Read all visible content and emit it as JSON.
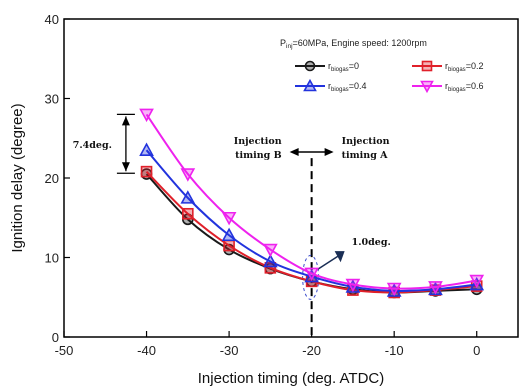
{
  "chart_data": {
    "type": "line",
    "xlabel": "Injection timing (deg. ATDC)",
    "ylabel": "Ignition delay (degree)",
    "xlim": [
      -50,
      5
    ],
    "ylim": [
      0,
      40
    ],
    "xticks": [
      -50,
      -40,
      -30,
      -20,
      -10,
      0
    ],
    "yticks": [
      0,
      10,
      20,
      30,
      40
    ],
    "x": [
      -40,
      -35,
      -30,
      -25,
      -20,
      -15,
      -10,
      -5,
      0
    ],
    "legend_title": "P_inj=60MPa, Engine speed: 1200rpm",
    "series": [
      {
        "name": "r_biogas=0",
        "color": "#1a1a1a",
        "marker": "circle",
        "values": [
          20.5,
          14.8,
          11.0,
          8.6,
          7.0,
          6.0,
          5.6,
          5.8,
          6.0
        ]
      },
      {
        "name": "r_biogas=0.2",
        "color": "#e0202a",
        "marker": "square",
        "values": [
          20.8,
          15.5,
          11.5,
          8.7,
          7.0,
          5.9,
          5.6,
          5.9,
          6.4
        ]
      },
      {
        "name": "r_biogas=0.4",
        "color": "#2233dd",
        "marker": "triangle-up",
        "values": [
          23.5,
          17.5,
          12.8,
          9.5,
          7.6,
          6.3,
          5.8,
          6.0,
          6.6
        ]
      },
      {
        "name": "r_biogas=0.6",
        "color": "#ee22ee",
        "marker": "triangle-down",
        "values": [
          28.0,
          20.5,
          15.0,
          11.0,
          8.0,
          6.6,
          6.1,
          6.3,
          7.1
        ]
      }
    ],
    "annotations": {
      "spread_label": "7.4deg.",
      "spread_range": [
        20.6,
        28.0
      ],
      "spread_x": -42.5,
      "vline_x": -20,
      "timing_b": [
        "Injection",
        "timing B"
      ],
      "timing_a": [
        "Injection",
        "timing A"
      ],
      "small_label": "1.0deg."
    }
  }
}
